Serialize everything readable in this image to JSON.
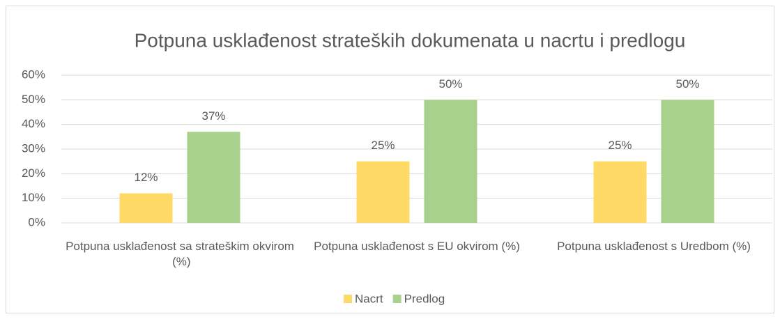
{
  "chart_data": {
    "type": "bar",
    "title": "Potpuna usklađenost strateških dokumenata u nacrtu i predlogu",
    "categories": [
      "Potpuna usklađenost sa strateškim okvirom (%)",
      "Potpuna usklađenost s EU okvirom (%)",
      "Potpuna usklađenost s Uredbom (%)"
    ],
    "series": [
      {
        "name": "Nacrt",
        "color": "#FFD966",
        "values": [
          12,
          25,
          25
        ],
        "value_labels": [
          "12%",
          "25%",
          "25%"
        ]
      },
      {
        "name": "Predlog",
        "color": "#A9D18E",
        "values": [
          37,
          50,
          50
        ],
        "value_labels": [
          "37%",
          "50%",
          "50%"
        ]
      }
    ],
    "ylim": [
      0,
      60
    ],
    "yticks": [
      {
        "value": 0,
        "label": "0%"
      },
      {
        "value": 10,
        "label": "10%"
      },
      {
        "value": 20,
        "label": "20%"
      },
      {
        "value": 30,
        "label": "30%"
      },
      {
        "value": 40,
        "label": "40%"
      },
      {
        "value": 50,
        "label": "50%"
      },
      {
        "value": 60,
        "label": "60%"
      }
    ],
    "grid": true,
    "legend": "bottom"
  }
}
